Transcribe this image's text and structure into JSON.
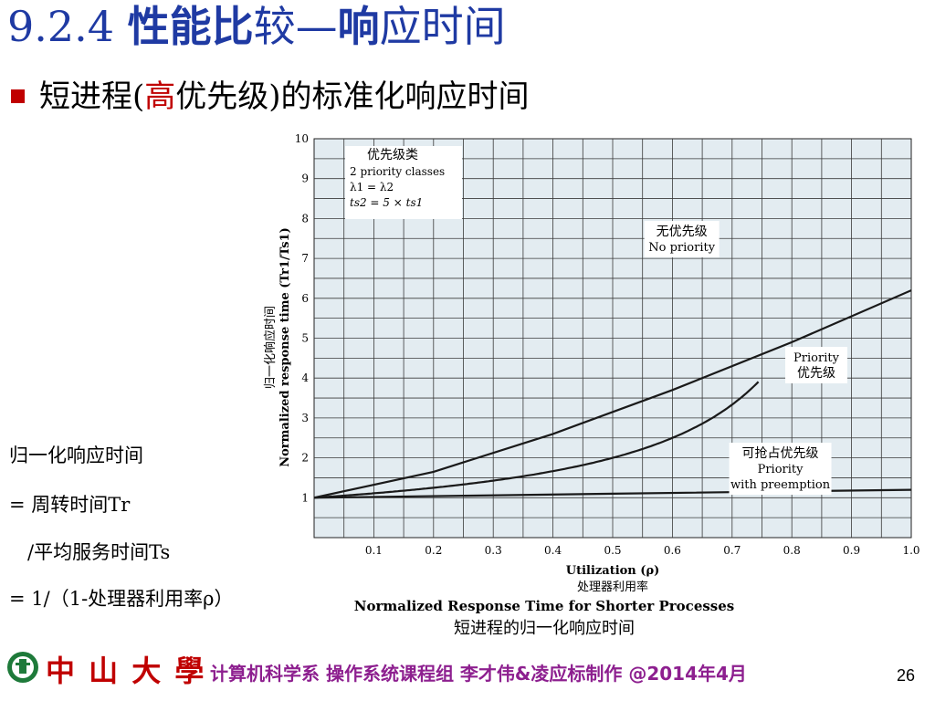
{
  "slide": {
    "title_num": "9.2.4 ",
    "title_bold": "性能比",
    "title_mid": "较—",
    "title_bold2": "响",
    "title_end": "应时间",
    "bullet_pre": "短进程(",
    "bullet_hl": "高",
    "bullet_post": "优先级)的标准化响应时间",
    "formula": [
      "归一化响应时间",
      "= 周转时间Tr",
      "/平均服务时间Ts",
      "= 1/（1-处理器利用率ρ）"
    ],
    "footer_school": "中 山 大 學",
    "footer_credits": "计算机科学系 操作系统课程组 李才伟&凌应标制作 @2014年4月",
    "page_number": "26"
  },
  "chart_data": {
    "type": "line",
    "title": "Normalized Response Time for Shorter Processes",
    "title_cn": "短进程的归一化响应时间",
    "xlabel": "Utilization (ρ)",
    "xlabel_cn": "处理器利用率",
    "ylabel": "Normalized response time (Tr1/Ts1)",
    "ylabel_cn": "归一化响应时间",
    "xlim": [
      0,
      1.0
    ],
    "ylim": [
      0,
      10
    ],
    "xticks": [
      "0.1",
      "0.2",
      "0.3",
      "0.4",
      "0.5",
      "0.6",
      "0.7",
      "0.8",
      "0.9",
      "1.0"
    ],
    "yticks": [
      "1",
      "2",
      "3",
      "4",
      "5",
      "6",
      "7",
      "8",
      "9",
      "10"
    ],
    "grid": true,
    "legend_box": {
      "title_cn": "优先级类",
      "lines": [
        "2 priority classes",
        "λ1 = λ2",
        "ts2 = 5 × ts1"
      ]
    },
    "series": [
      {
        "name": "No priority",
        "label_cn": "无优先级",
        "x": [
          0.0,
          0.1,
          0.2,
          0.3,
          0.4,
          0.5,
          0.6,
          0.65,
          0.7,
          0.73,
          0.75
        ],
        "y": [
          1.0,
          1.11,
          1.25,
          1.43,
          1.67,
          2.0,
          2.5,
          2.86,
          3.33,
          3.7,
          4.0
        ]
      },
      {
        "name": "Priority",
        "label_cn": "优先级",
        "x": [
          0.0,
          0.2,
          0.4,
          0.6,
          0.8,
          1.0
        ],
        "y": [
          1.0,
          1.65,
          2.6,
          3.7,
          4.9,
          6.2
        ]
      },
      {
        "name": "Priority with preemption",
        "label_cn": "可抢占优先级",
        "x": [
          0.0,
          0.5,
          1.0
        ],
        "y": [
          1.0,
          1.1,
          1.2
        ]
      }
    ]
  }
}
